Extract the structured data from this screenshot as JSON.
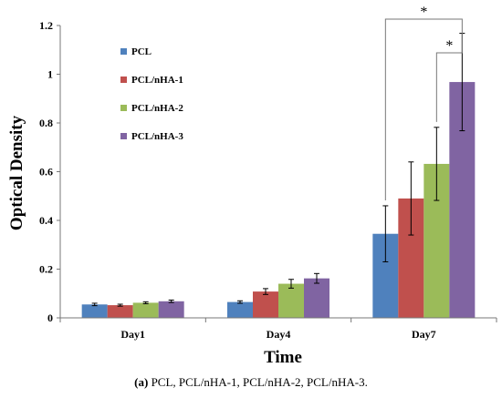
{
  "chart_data": {
    "type": "bar",
    "title": "",
    "xlabel": "Time",
    "ylabel": "Optical Density",
    "ylim": [
      0,
      1.2
    ],
    "yticks": [
      0,
      0.2,
      0.4,
      0.6,
      0.8,
      1,
      1.2
    ],
    "ytick_labels": [
      "0",
      "0.2",
      "0.4",
      "0.6",
      "0.8",
      "1",
      "1.2"
    ],
    "grid": false,
    "legend_position": "top-left",
    "categories": [
      "Day1",
      "Day4",
      "Day7"
    ],
    "series": [
      {
        "name": "PCL",
        "color": "#4f81bd",
        "values": [
          0.055,
          0.065,
          0.345
        ],
        "errors": [
          0.005,
          0.005,
          0.115
        ]
      },
      {
        "name": "PCL/nHA-1",
        "color": "#c0504d",
        "values": [
          0.052,
          0.108,
          0.49
        ],
        "errors": [
          0.004,
          0.012,
          0.15
        ]
      },
      {
        "name": "PCL/nHA-2",
        "color": "#9bbb59",
        "values": [
          0.062,
          0.14,
          0.632
        ],
        "errors": [
          0.004,
          0.018,
          0.15
        ]
      },
      {
        "name": "PCL/nHA-3",
        "color": "#8064a2",
        "values": [
          0.068,
          0.162,
          0.968
        ],
        "errors": [
          0.005,
          0.02,
          0.2
        ]
      }
    ],
    "annotations": [
      {
        "text": "*",
        "category": "Day7",
        "from_series": 0,
        "to_series": 3
      },
      {
        "text": "*",
        "category": "Day7",
        "from_series": 2,
        "to_series": 3
      }
    ]
  },
  "caption": {
    "label": "(a)",
    "text": " PCL, PCL/nHA-1, PCL/nHA-2, PCL/nHA-3."
  }
}
